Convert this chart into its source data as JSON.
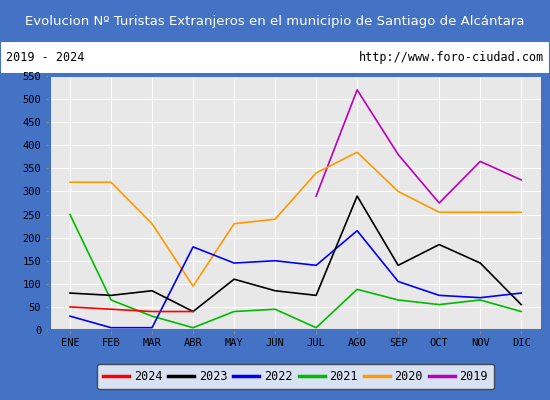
{
  "title": "Evolucion Nº Turistas Extranjeros en el municipio de Santiago de Alcántara",
  "subtitle_left": "2019 - 2024",
  "subtitle_right": "http://www.foro-ciudad.com",
  "x_labels": [
    "ENE",
    "FEB",
    "MAR",
    "ABR",
    "MAY",
    "JUN",
    "JUL",
    "AGO",
    "SEP",
    "OCT",
    "NOV",
    "DIC"
  ],
  "ylim": [
    0,
    550
  ],
  "yticks": [
    0,
    50,
    100,
    150,
    200,
    250,
    300,
    350,
    400,
    450,
    500,
    550
  ],
  "series": {
    "2024": {
      "color": "#ff0000",
      "data": [
        50,
        45,
        40,
        40,
        null,
        null,
        null,
        null,
        null,
        null,
        null,
        null
      ]
    },
    "2023": {
      "color": "#000000",
      "data": [
        80,
        75,
        85,
        40,
        110,
        85,
        75,
        290,
        140,
        185,
        145,
        55
      ]
    },
    "2022": {
      "color": "#0000ff",
      "data": [
        30,
        5,
        5,
        180,
        145,
        150,
        140,
        215,
        105,
        75,
        70,
        80
      ]
    },
    "2021": {
      "color": "#00bb00",
      "data": [
        250,
        65,
        30,
        5,
        40,
        45,
        5,
        88,
        65,
        55,
        65,
        40
      ]
    },
    "2020": {
      "color": "#ff9900",
      "data": [
        320,
        320,
        230,
        95,
        230,
        240,
        340,
        385,
        300,
        255,
        255,
        255
      ]
    },
    "2019": {
      "color": "#bb00bb",
      "data": [
        null,
        null,
        null,
        null,
        null,
        null,
        290,
        520,
        380,
        275,
        365,
        325
      ]
    }
  },
  "title_bg": "#4472c4",
  "title_color": "#ffffff",
  "plot_bg": "#e8e8e8",
  "grid_color": "#ffffff",
  "border_color": "#4472c4",
  "subtitle_bg": "#ffffff",
  "legend_order": [
    "2024",
    "2023",
    "2022",
    "2021",
    "2020",
    "2019"
  ],
  "title_fontsize": 9.5,
  "tick_fontsize": 7.5,
  "legend_fontsize": 8.5
}
